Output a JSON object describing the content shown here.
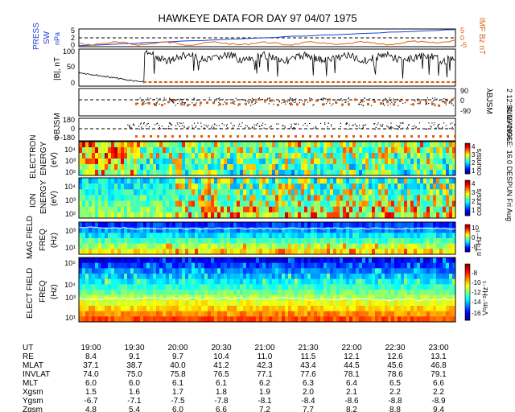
{
  "title": "HAWKEYE DATA FOR DAY  97 04/07 1975",
  "side_note": "2 12:30:19 1996",
  "side_note2": "SUN ANGLE:  16.0 DESPUN Fri Aug",
  "colors": {
    "blue": "#1a3fd6",
    "orange": "#e06010",
    "black": "#000000",
    "white": "#ffffff"
  },
  "panels": {
    "press": {
      "left_label_1": "PRESS",
      "left_label_2": "SW",
      "left_label_3": "nPa",
      "right_label": "IMF Bz nT",
      "yticks": [
        "0",
        "2",
        "5"
      ],
      "rticks": [
        "5",
        "0",
        "-5"
      ]
    },
    "b": {
      "left_label": "|B|, nT",
      "yticks": [
        "100",
        "50",
        "0"
      ]
    },
    "lambda": {
      "right_label": "λBJSM",
      "yticks": [
        "90",
        "0",
        "-90"
      ]
    },
    "phi": {
      "left_label": "ΦBJSM",
      "yticks": [
        "180",
        "0",
        "-180"
      ]
    },
    "electron": {
      "label_1": "ELECTRON",
      "label_2": "ENERGY",
      "label_3": "(eV)",
      "yticks": [
        "10⁴",
        "10³",
        "10²"
      ],
      "cbar_label": "counts/s",
      "cbar_ticks": [
        "4",
        "3",
        "2",
        "1"
      ]
    },
    "ion": {
      "label_1": "ION",
      "label_2": "ENERGY",
      "label_3": "(eV)",
      "yticks": [
        "10⁴",
        "10³",
        "10²"
      ],
      "cbar_label": "counts/s",
      "cbar_ticks": [
        "4",
        "3",
        "2",
        "1"
      ]
    },
    "mag": {
      "label_1": "MAG FIELD",
      "label_2": "FREQ",
      "label_3": "(Hz)",
      "yticks": [
        "10³",
        "10¹"
      ],
      "cbar_label": "nT²Hz⁻¹",
      "cbar_ticks": [
        "10",
        "0",
        "-5"
      ]
    },
    "elec": {
      "label_1": "ELECT FIELD",
      "label_2": "FREQ",
      "label_3": "(Hz)",
      "yticks": [
        "10⁵",
        "10⁴",
        "10³",
        "10¹"
      ],
      "cbar_label": "V²m⁻²Hz⁻¹",
      "cbar_ticks": [
        "-8",
        "-10",
        "-12",
        "-14",
        "-16"
      ]
    }
  },
  "chart_data": {
    "type": "table",
    "columns": [
      "19:00",
      "19:30",
      "20:00",
      "20:30",
      "21:00",
      "21:30",
      "22:00",
      "22:30",
      "23:00"
    ],
    "rows": [
      {
        "name": "UT",
        "values": [
          "19:00",
          "19:30",
          "20:00",
          "20:30",
          "21:00",
          "21:30",
          "22:00",
          "22:30",
          "23:00"
        ]
      },
      {
        "name": "RE",
        "values": [
          "8.4",
          "9.1",
          "9.7",
          "10.4",
          "11.0",
          "11.5",
          "12.1",
          "12.6",
          "13.1"
        ]
      },
      {
        "name": "MLAT",
        "values": [
          "37.1",
          "38.7",
          "40.0",
          "41.2",
          "42.3",
          "43.4",
          "44.5",
          "45.6",
          "46.8"
        ]
      },
      {
        "name": "INVLAT",
        "values": [
          "74.0",
          "75.0",
          "75.8",
          "76.5",
          "77.1",
          "77.6",
          "78.1",
          "78.6",
          "79.1"
        ]
      },
      {
        "name": "MLT",
        "values": [
          "6.0",
          "6.0",
          "6.1",
          "6.1",
          "6.2",
          "6.3",
          "6.4",
          "6.5",
          "6.6"
        ]
      },
      {
        "name": "Xgsm",
        "values": [
          "1.5",
          "1.6",
          "1.7",
          "1.8",
          "1.9",
          "2.0",
          "2.1",
          "2.2",
          "2.2"
        ]
      },
      {
        "name": "Ygsm",
        "values": [
          "-6.7",
          "-7.1",
          "-7.5",
          "-7.8",
          "-8.1",
          "-8.4",
          "-8.6",
          "-8.8",
          "-8.9"
        ]
      },
      {
        "name": "Zgsm",
        "values": [
          "4.8",
          "5.4",
          "6.0",
          "6.6",
          "7.2",
          "7.7",
          "8.2",
          "8.8",
          "9.4"
        ]
      }
    ]
  }
}
